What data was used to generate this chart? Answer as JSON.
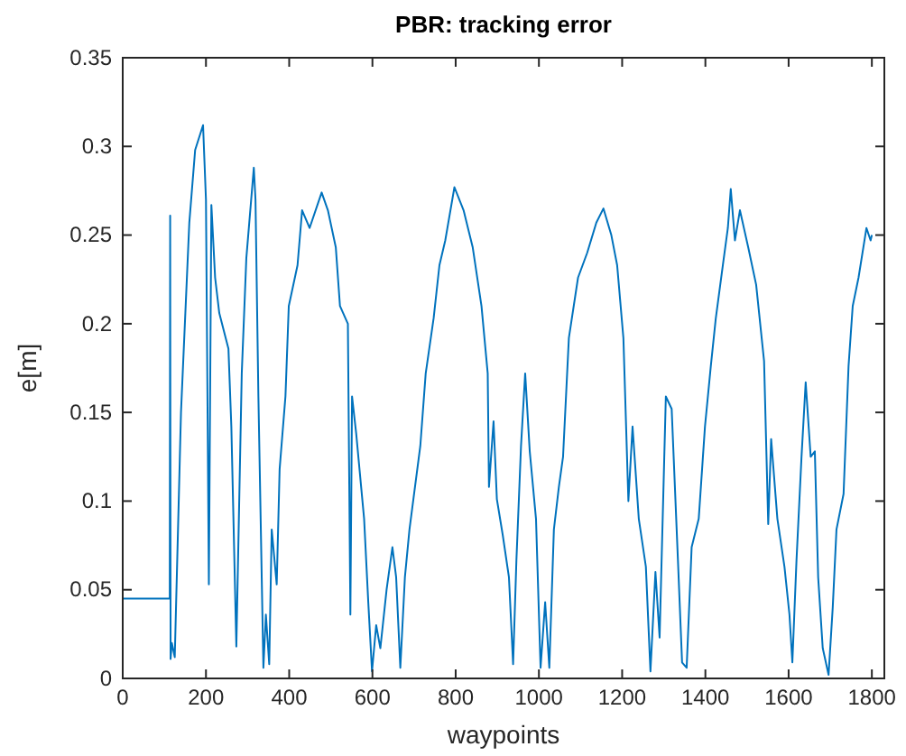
{
  "chart_data": {
    "type": "line",
    "title": "PBR: tracking error",
    "xlabel": "waypoints",
    "ylabel": "e[m]",
    "xlim": [
      0,
      1830
    ],
    "ylim": [
      0,
      0.35
    ],
    "xticks": [
      0,
      200,
      400,
      600,
      800,
      1000,
      1200,
      1400,
      1600,
      1800
    ],
    "yticks": [
      0,
      0.05,
      0.1,
      0.15,
      0.2,
      0.25,
      0.3,
      0.35
    ],
    "series": [
      {
        "color": "#0072bd",
        "x": [
          0,
          113,
          114,
          115,
          118,
          125,
          140,
          160,
          174,
          193,
          200,
          207,
          213,
          222,
          232,
          254,
          261,
          273,
          286,
          297,
          315,
          319,
          326,
          338,
          344,
          352,
          358,
          370,
          377,
          391,
          399,
          420,
          431,
          449,
          478,
          493,
          512,
          522,
          541,
          547,
          551,
          561,
          580,
          590,
          599,
          609,
          619,
          634,
          648,
          657,
          667,
          678,
          689,
          700,
          715,
          728,
          747,
          761,
          775,
          797,
          819,
          841,
          862,
          877,
          880,
          891,
          899,
          913,
          928,
          938,
          946,
          957,
          967,
          978,
          993,
          1004,
          1015,
          1025,
          1036,
          1048,
          1058,
          1072,
          1094,
          1116,
          1138,
          1155,
          1174,
          1188,
          1203,
          1215,
          1225,
          1240,
          1257,
          1268,
          1280,
          1290,
          1305,
          1319,
          1334,
          1344,
          1355,
          1367,
          1384,
          1399,
          1413,
          1425,
          1442,
          1454,
          1461,
          1471,
          1483,
          1503,
          1522,
          1541,
          1551,
          1558,
          1573,
          1590,
          1602,
          1609,
          1619,
          1631,
          1641,
          1653,
          1663,
          1671,
          1682,
          1696,
          1706,
          1715,
          1732,
          1744,
          1754,
          1768,
          1787,
          1797,
          1800
        ],
        "values": [
          0.045,
          0.045,
          0.261,
          0.011,
          0.02,
          0.012,
          0.15,
          0.257,
          0.298,
          0.312,
          0.27,
          0.053,
          0.267,
          0.226,
          0.206,
          0.186,
          0.142,
          0.018,
          0.172,
          0.237,
          0.288,
          0.27,
          0.159,
          0.006,
          0.036,
          0.008,
          0.084,
          0.053,
          0.118,
          0.159,
          0.21,
          0.233,
          0.264,
          0.254,
          0.274,
          0.264,
          0.243,
          0.21,
          0.2,
          0.036,
          0.159,
          0.138,
          0.09,
          0.043,
          0.004,
          0.03,
          0.017,
          0.05,
          0.074,
          0.057,
          0.006,
          0.057,
          0.084,
          0.104,
          0.131,
          0.172,
          0.203,
          0.233,
          0.247,
          0.277,
          0.264,
          0.243,
          0.21,
          0.172,
          0.108,
          0.145,
          0.101,
          0.081,
          0.057,
          0.008,
          0.067,
          0.131,
          0.172,
          0.128,
          0.09,
          0.006,
          0.043,
          0.006,
          0.084,
          0.108,
          0.125,
          0.192,
          0.226,
          0.24,
          0.257,
          0.265,
          0.25,
          0.233,
          0.192,
          0.1,
          0.142,
          0.09,
          0.063,
          0.004,
          0.06,
          0.023,
          0.159,
          0.152,
          0.067,
          0.009,
          0.006,
          0.074,
          0.09,
          0.142,
          0.176,
          0.203,
          0.233,
          0.254,
          0.276,
          0.247,
          0.264,
          0.243,
          0.222,
          0.179,
          0.087,
          0.135,
          0.09,
          0.063,
          0.036,
          0.009,
          0.067,
          0.125,
          0.167,
          0.125,
          0.128,
          0.057,
          0.017,
          0.002,
          0.04,
          0.084,
          0.104,
          0.176,
          0.21,
          0.226,
          0.254,
          0.247,
          0.25
        ]
      }
    ]
  }
}
